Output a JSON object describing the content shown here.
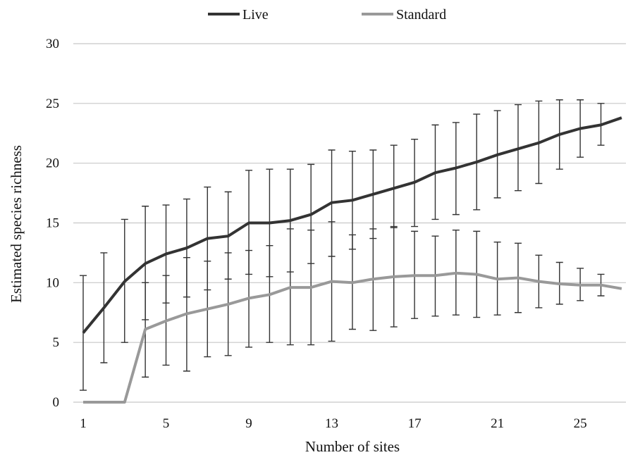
{
  "chart_data": {
    "type": "line",
    "title": "",
    "xlabel": "Number of sites",
    "ylabel": "Estimated species richness",
    "xlim": [
      1,
      27
    ],
    "ylim": [
      0,
      30
    ],
    "x_ticks": [
      "1",
      "5",
      "9",
      "13",
      "17",
      "21",
      "25"
    ],
    "y_ticks": [
      "0",
      "5",
      "10",
      "15",
      "20",
      "25",
      "30"
    ],
    "grid": "horizontal",
    "legend_position": "top",
    "x": [
      1,
      2,
      3,
      4,
      5,
      6,
      7,
      8,
      9,
      10,
      11,
      12,
      13,
      14,
      15,
      16,
      17,
      18,
      19,
      20,
      21,
      22,
      23,
      24,
      25,
      26,
      27
    ],
    "series": [
      {
        "name": "Live",
        "color": "#333333",
        "values": [
          5.8,
          7.9,
          10.1,
          11.6,
          12.4,
          12.9,
          13.7,
          13.9,
          15.0,
          15.0,
          15.2,
          15.7,
          16.7,
          16.9,
          17.4,
          17.9,
          18.4,
          19.2,
          19.6,
          20.1,
          20.7,
          21.2,
          21.7,
          22.4,
          22.9,
          23.2,
          23.8
        ],
        "err_low": [
          1.0,
          3.3,
          5.0,
          6.9,
          8.3,
          8.8,
          9.4,
          10.3,
          10.7,
          10.5,
          10.9,
          11.6,
          12.2,
          12.8,
          13.7,
          14.6,
          14.7,
          15.3,
          15.7,
          16.1,
          17.1,
          17.7,
          18.3,
          19.5,
          20.5,
          21.5,
          null
        ],
        "err_high": [
          10.6,
          12.5,
          15.3,
          16.4,
          16.5,
          17.0,
          18.0,
          17.6,
          19.4,
          19.5,
          19.5,
          19.9,
          21.1,
          21.0,
          21.1,
          21.5,
          22.0,
          23.2,
          23.4,
          24.1,
          24.4,
          24.9,
          25.2,
          25.3,
          25.3,
          25.0,
          null
        ]
      },
      {
        "name": "Standard",
        "color": "#999999",
        "values": [
          0,
          0,
          0,
          6.1,
          6.8,
          7.4,
          7.8,
          8.2,
          8.7,
          9.0,
          9.6,
          9.6,
          10.1,
          10.0,
          10.3,
          10.5,
          10.6,
          10.6,
          10.8,
          10.7,
          10.3,
          10.4,
          10.1,
          9.9,
          9.8,
          9.8,
          9.5
        ],
        "err_low": [
          null,
          null,
          null,
          2.1,
          3.1,
          2.6,
          3.8,
          3.9,
          4.6,
          5.0,
          4.8,
          4.8,
          5.1,
          6.1,
          6.0,
          6.3,
          7.0,
          7.2,
          7.3,
          7.1,
          7.3,
          7.5,
          7.9,
          8.2,
          8.5,
          8.9,
          null
        ],
        "err_high": [
          null,
          null,
          null,
          10.0,
          10.6,
          12.1,
          11.8,
          12.5,
          12.7,
          13.1,
          14.5,
          14.4,
          15.1,
          14.0,
          14.5,
          14.7,
          14.3,
          13.9,
          14.4,
          14.3,
          13.4,
          13.3,
          12.3,
          11.7,
          11.2,
          10.7,
          null
        ]
      }
    ]
  }
}
